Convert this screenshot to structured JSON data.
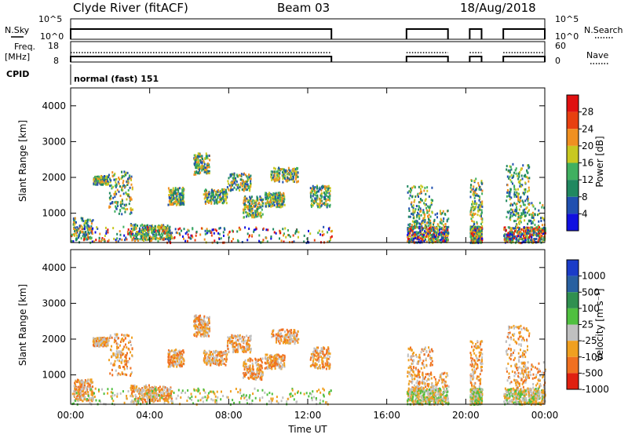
{
  "header": {
    "station": "Clyde River (fitACF)",
    "beam": "Beam 03",
    "date": "18/Aug/2018"
  },
  "top_panels": {
    "nsky_label": "N.Sky",
    "nsky_ticks": [
      "10^5",
      "10^0"
    ],
    "nsearch_label": "N.Search",
    "nsearch_ticks": [
      "10^5",
      "10^0"
    ],
    "freq_label_1": "Freq.",
    "freq_label_2": "[MHz]",
    "freq_ticks": [
      "18",
      "8"
    ],
    "nave_label": "Nave",
    "nave_ticks": [
      "60",
      "0"
    ],
    "cpid_label": "CPID",
    "cpid_text": "normal (fast) 151"
  },
  "chart_data": [
    {
      "type": "heatmap",
      "title": "",
      "ylabel": "Slant Range [km]",
      "ylim": [
        180,
        4500
      ],
      "yticks": [
        "1000",
        "2000",
        "3000",
        "4000"
      ],
      "colorbar_label": "Power [dB]",
      "colorbar_ticks": [
        "4",
        "8",
        "12",
        "16",
        "20",
        "24",
        "28"
      ],
      "colorscale": [
        "#1010e0",
        "#2050b0",
        "#208860",
        "#40b060",
        "#c8c820",
        "#f09020",
        "#e84010",
        "#e01010"
      ],
      "data_hours": [
        [
          0,
          13.2
        ],
        [
          17,
          19.1
        ],
        [
          20.2,
          20.8
        ],
        [
          21.9,
          24
        ]
      ]
    },
    {
      "type": "heatmap",
      "title": "",
      "xlabel": "Time UT",
      "ylabel": "Slant Range [km]",
      "ylim": [
        180,
        4500
      ],
      "xlim": [
        "00:00",
        "00:00"
      ],
      "xticks": [
        "00:00",
        "04:00",
        "08:00",
        "12:00",
        "16:00",
        "20:00",
        "00:00"
      ],
      "yticks": [
        "1000",
        "2000",
        "3000",
        "4000"
      ],
      "colorbar_label": "Velocity [m s⁻¹]",
      "colorbar_ticks": [
        "1000",
        "500",
        "100",
        "25",
        "-25",
        "-100",
        "-500",
        "-1000"
      ],
      "colorscale": [
        "#1a3cc8",
        "#2860a0",
        "#309050",
        "#50c040",
        "#c0c0c0",
        "#f0a020",
        "#f07020",
        "#e02010"
      ],
      "data_hours": [
        [
          0,
          13.2
        ],
        [
          17,
          19.1
        ],
        [
          20.2,
          20.8
        ],
        [
          21.9,
          24
        ]
      ]
    }
  ]
}
